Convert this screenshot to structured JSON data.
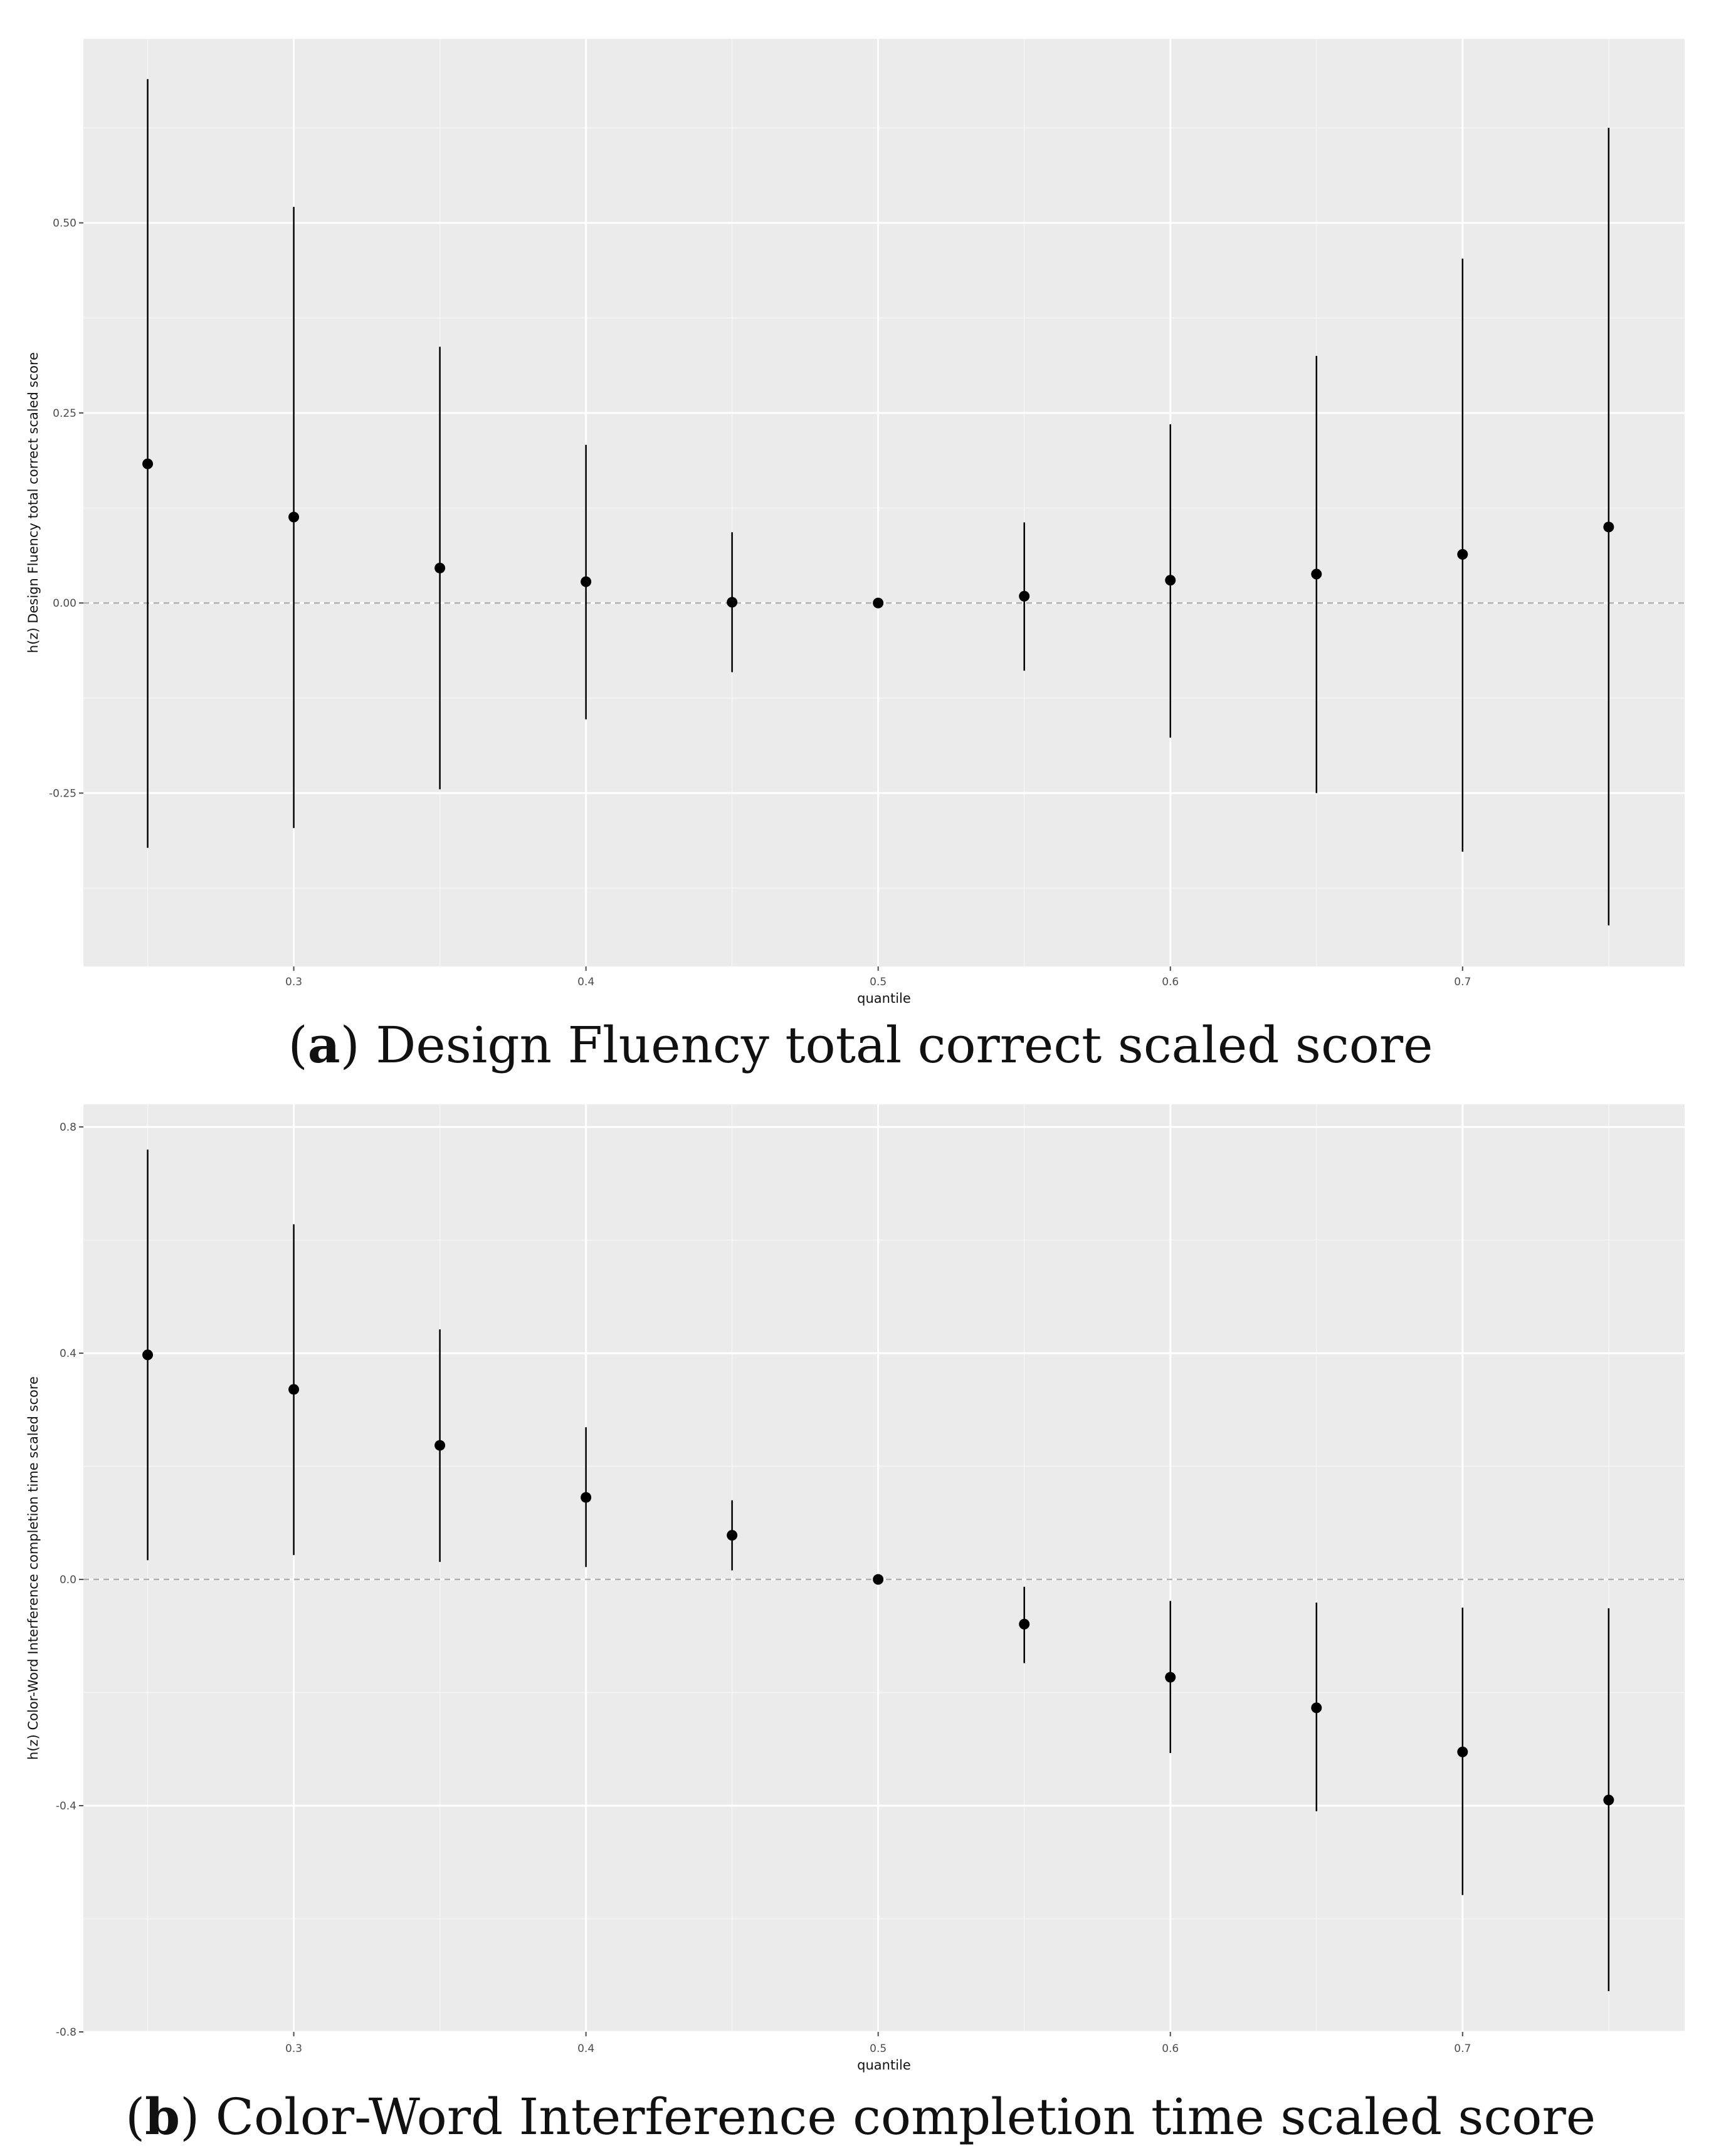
{
  "chart_data": [
    {
      "type": "scatter",
      "panel": "a",
      "caption_letter": "a",
      "caption_text": "Design Fluency total correct scaled score",
      "xlabel": "quantile",
      "ylabel": "h(z) Design Fluency total correct scaled score",
      "xlim": [
        0.228,
        0.776
      ],
      "ylim": [
        -0.478,
        0.742
      ],
      "x_ticks": [
        0.3,
        0.4,
        0.5,
        0.6,
        0.7
      ],
      "x_tick_labels": [
        "0.3",
        "0.4",
        "0.5",
        "0.6",
        "0.7"
      ],
      "y_ticks": [
        -0.25,
        0.0,
        0.25,
        0.5
      ],
      "y_tick_labels": [
        "-0.25",
        "0.00",
        "0.25",
        "0.50"
      ],
      "reference_line_y": 0,
      "grid": true,
      "points": [
        {
          "x": 0.25,
          "y": 0.183,
          "lower": -0.322,
          "upper": 0.689
        },
        {
          "x": 0.3,
          "y": 0.113,
          "lower": -0.296,
          "upper": 0.521
        },
        {
          "x": 0.35,
          "y": 0.046,
          "lower": -0.245,
          "upper": 0.337
        },
        {
          "x": 0.4,
          "y": 0.028,
          "lower": -0.153,
          "upper": 0.208
        },
        {
          "x": 0.45,
          "y": 0.001,
          "lower": -0.091,
          "upper": 0.093
        },
        {
          "x": 0.5,
          "y": 0.0,
          "lower": 0.0,
          "upper": 0.0
        },
        {
          "x": 0.55,
          "y": 0.009,
          "lower": -0.089,
          "upper": 0.106
        },
        {
          "x": 0.6,
          "y": 0.03,
          "lower": -0.177,
          "upper": 0.235
        },
        {
          "x": 0.65,
          "y": 0.038,
          "lower": -0.25,
          "upper": 0.325
        },
        {
          "x": 0.7,
          "y": 0.064,
          "lower": -0.327,
          "upper": 0.453
        },
        {
          "x": 0.75,
          "y": 0.1,
          "lower": -0.424,
          "upper": 0.625
        }
      ]
    },
    {
      "type": "scatter",
      "panel": "b",
      "caption_letter": "b",
      "caption_text": "Color-Word Interference completion time scaled score",
      "xlabel": "quantile",
      "ylabel": "h(z) Color-Word Interference completion time scaled score",
      "xlim": [
        0.228,
        0.776
      ],
      "ylim": [
        -0.8,
        0.84
      ],
      "x_ticks": [
        0.3,
        0.4,
        0.5,
        0.6,
        0.7
      ],
      "x_tick_labels": [
        "0.3",
        "0.4",
        "0.5",
        "0.6",
        "0.7"
      ],
      "y_ticks": [
        -0.8,
        -0.4,
        0.0,
        0.4,
        0.8
      ],
      "y_tick_labels": [
        "-0.8",
        "-0.4",
        "0.0",
        "0.4",
        "0.8"
      ],
      "reference_line_y": 0,
      "grid": true,
      "points": [
        {
          "x": 0.25,
          "y": 0.397,
          "lower": 0.034,
          "upper": 0.76
        },
        {
          "x": 0.3,
          "y": 0.336,
          "lower": 0.043,
          "upper": 0.628
        },
        {
          "x": 0.35,
          "y": 0.237,
          "lower": 0.031,
          "upper": 0.442
        },
        {
          "x": 0.4,
          "y": 0.145,
          "lower": 0.022,
          "upper": 0.269
        },
        {
          "x": 0.45,
          "y": 0.078,
          "lower": 0.016,
          "upper": 0.14
        },
        {
          "x": 0.5,
          "y": 0.0,
          "lower": 0.0,
          "upper": 0.0
        },
        {
          "x": 0.55,
          "y": -0.079,
          "lower": -0.148,
          "upper": -0.013
        },
        {
          "x": 0.6,
          "y": -0.173,
          "lower": -0.307,
          "upper": -0.038
        },
        {
          "x": 0.65,
          "y": -0.227,
          "lower": -0.41,
          "upper": -0.041
        },
        {
          "x": 0.7,
          "y": -0.305,
          "lower": -0.558,
          "upper": -0.05
        },
        {
          "x": 0.75,
          "y": -0.39,
          "lower": -0.728,
          "upper": -0.051
        }
      ]
    }
  ]
}
